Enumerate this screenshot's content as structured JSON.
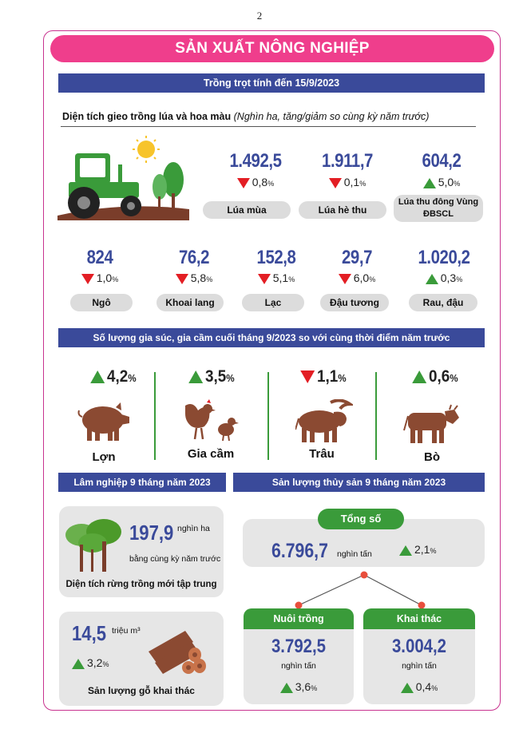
{
  "page_number": "2",
  "title": "SẢN XUẤT NÔNG NGHIỆP",
  "crop_bar": "Trồng trọt tính đến 15/9/2023",
  "crop_subtitle": {
    "main": "Diện tích gieo trồng lúa và hoa màu",
    "note": "(Nghìn ha, tăng/giảm so cùng kỳ năm trước)"
  },
  "crops_top": [
    {
      "value": "1.492,5",
      "change": "0,8",
      "dir": "down",
      "label": "Lúa mùa"
    },
    {
      "value": "1.911,7",
      "change": "0,1",
      "dir": "down",
      "label": "Lúa hè thu"
    },
    {
      "value": "604,2",
      "change": "5,0",
      "dir": "up",
      "label": "Lúa thu đông Vùng ĐBSCL"
    }
  ],
  "crops_bottom": [
    {
      "value": "824",
      "change": "1,0",
      "dir": "down",
      "label": "Ngô"
    },
    {
      "value": "76,2",
      "change": "5,8",
      "dir": "down",
      "label": "Khoai lang"
    },
    {
      "value": "152,8",
      "change": "5,1",
      "dir": "down",
      "label": "Lạc"
    },
    {
      "value": "29,7",
      "change": "6,0",
      "dir": "down",
      "label": "Đậu tương"
    },
    {
      "value": "1.020,2",
      "change": "0,3",
      "dir": "up",
      "label": "Rau, đậu"
    }
  ],
  "pct": "%",
  "livestock_bar": "Số lượng gia súc, gia cầm cuối tháng 9/2023 so với cùng thời điểm năm trước",
  "livestock": [
    {
      "change": "4,2",
      "dir": "up",
      "label": "Lợn",
      "icon": "pig-icon"
    },
    {
      "change": "3,5",
      "dir": "up",
      "label": "Gia cầm",
      "icon": "poultry-icon"
    },
    {
      "change": "1,1",
      "dir": "down",
      "label": "Trâu",
      "icon": "buffalo-icon"
    },
    {
      "change": "0,6",
      "dir": "up",
      "label": "Bò",
      "icon": "cow-icon"
    }
  ],
  "forestry": {
    "bar": "Lâm nghiệp 9 tháng năm 2023",
    "area_value": "197,9",
    "area_unit": "nghìn ha",
    "area_note": "bằng cùng kỳ năm trước",
    "area_label": "Diện tích rừng trồng mới tập trung",
    "wood_value": "14,5",
    "wood_unit": "triệu m³",
    "wood_change": "3,2",
    "wood_label": "Sản lượng gỗ khai thác"
  },
  "fishery": {
    "bar": "Sản lượng thủy sản 9 tháng năm 2023",
    "total_label": "Tổng số",
    "total_value": "6.796,7",
    "unit": "nghìn tấn",
    "total_change": "2,1",
    "aqua_label": "Nuôi trồng",
    "aqua_value": "3.792,5",
    "aqua_change": "3,6",
    "catch_label": "Khai thác",
    "catch_value": "3.004,2",
    "catch_change": "0,4"
  },
  "colors": {
    "pink": "#ef3e8c",
    "navy": "#3a4a9a",
    "green": "#3a9b3a",
    "red": "#e31e24",
    "brown": "#8b4a32"
  }
}
